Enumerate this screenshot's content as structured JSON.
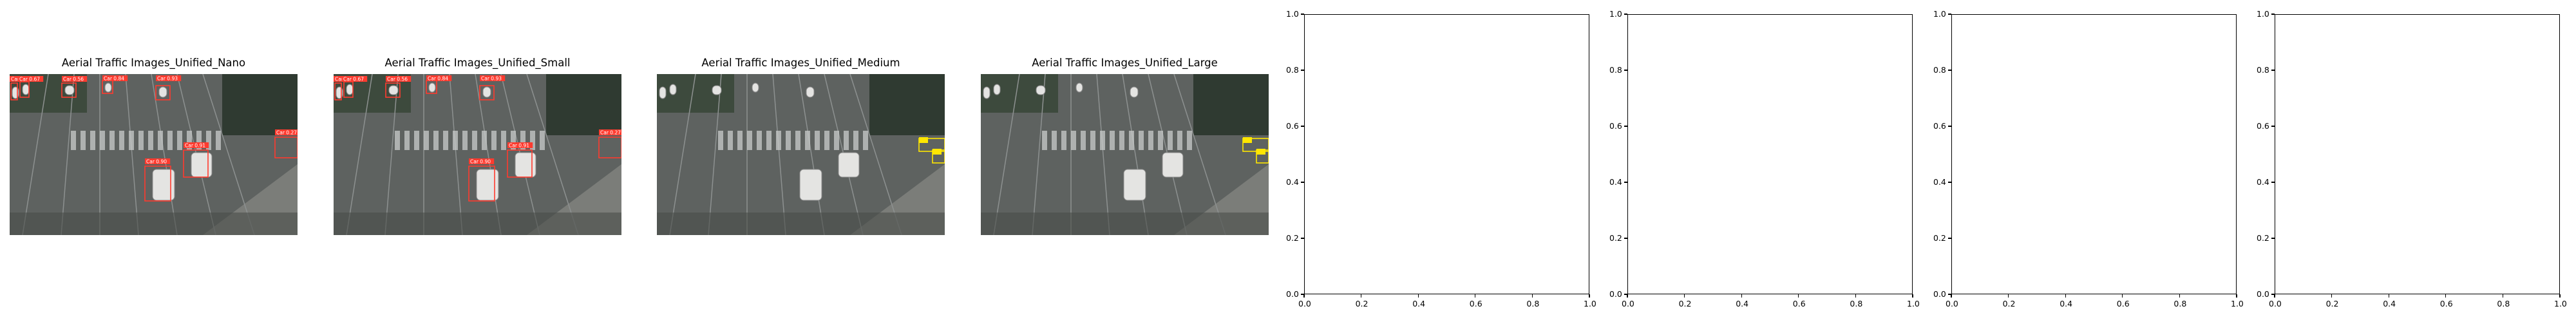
{
  "chart_data": [
    {
      "type": "image",
      "title": "Aerial Traffic Images_Unified_Nano",
      "detections": [
        {
          "label": "Car",
          "score": "0.90"
        },
        {
          "label": "Car",
          "score": "0.67"
        },
        {
          "label": "Car",
          "score": "0.56"
        },
        {
          "label": "Car",
          "score": "0.84"
        },
        {
          "label": "Car",
          "score": "0.93"
        },
        {
          "label": "Car",
          "score": "0.27"
        },
        {
          "label": "Car",
          "score": "0.90"
        },
        {
          "label": "Car",
          "score": "0.91"
        }
      ],
      "box_color": "#ff3b2f"
    },
    {
      "type": "image",
      "title": "Aerial Traffic Images_Unified_Small",
      "detections": [
        {
          "label": "Car",
          "score": "0.90"
        },
        {
          "label": "Car",
          "score": "0.67"
        },
        {
          "label": "Car",
          "score": "0.56"
        },
        {
          "label": "Car",
          "score": "0.84"
        },
        {
          "label": "Car",
          "score": "0.93"
        },
        {
          "label": "Car",
          "score": "0.27"
        },
        {
          "label": "Car",
          "score": "0.90"
        },
        {
          "label": "Car",
          "score": "0.91"
        }
      ],
      "box_color": "#ff3b2f"
    },
    {
      "type": "image",
      "title": "Aerial Traffic Images_Unified_Medium",
      "detections": [
        {
          "label": "",
          "score": ""
        },
        {
          "label": "",
          "score": ""
        }
      ],
      "box_color": "#ffe600"
    },
    {
      "type": "image",
      "title": "Aerial Traffic Images_Unified_Large",
      "detections": [
        {
          "label": "",
          "score": ""
        },
        {
          "label": "",
          "score": ""
        }
      ],
      "box_color": "#ffe600"
    },
    {
      "type": "empty",
      "xlim": [
        0,
        1
      ],
      "ylim": [
        0,
        1
      ],
      "xticks": [
        "0.0",
        "0.2",
        "0.4",
        "0.6",
        "0.8",
        "1.0"
      ],
      "yticks": [
        "0.0",
        "0.2",
        "0.4",
        "0.6",
        "0.8",
        "1.0"
      ]
    },
    {
      "type": "empty",
      "xlim": [
        0,
        1
      ],
      "ylim": [
        0,
        1
      ],
      "xticks": [
        "0.0",
        "0.2",
        "0.4",
        "0.6",
        "0.8",
        "1.0"
      ],
      "yticks": [
        "0.0",
        "0.2",
        "0.4",
        "0.6",
        "0.8",
        "1.0"
      ]
    },
    {
      "type": "empty",
      "xlim": [
        0,
        1
      ],
      "ylim": [
        0,
        1
      ],
      "xticks": [
        "0.0",
        "0.2",
        "0.4",
        "0.6",
        "0.8",
        "1.0"
      ],
      "yticks": [
        "0.0",
        "0.2",
        "0.4",
        "0.6",
        "0.8",
        "1.0"
      ]
    },
    {
      "type": "empty",
      "xlim": [
        0,
        1
      ],
      "ylim": [
        0,
        1
      ],
      "xticks": [
        "0.0",
        "0.2",
        "0.4",
        "0.6",
        "0.8",
        "1.0"
      ],
      "yticks": [
        "0.0",
        "0.2",
        "0.4",
        "0.6",
        "0.8",
        "1.0"
      ]
    }
  ]
}
